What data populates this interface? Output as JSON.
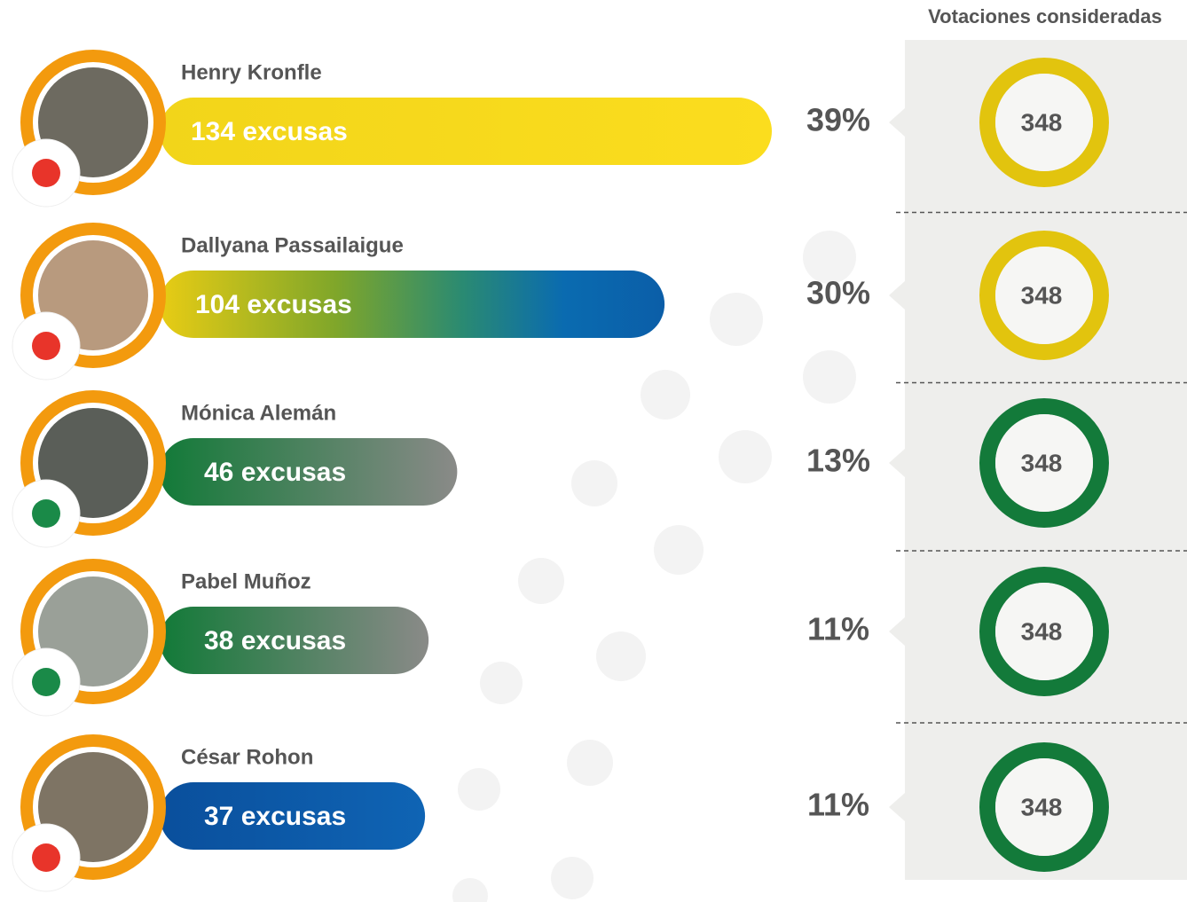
{
  "chart_data": {
    "type": "bar",
    "panel_title": "Votaciones consideradas",
    "categories": [
      "Henry Kronfle",
      "Dallyana Passailaigue",
      "Mónica Alemán",
      "Pabel Muñoz",
      "César Rohon"
    ],
    "values": [
      134,
      104,
      46,
      38,
      37
    ],
    "value_labels": [
      "134 excusas",
      "104 excusas",
      "46 excusas",
      "38 excusas",
      "37 excusas"
    ],
    "shares": [
      39,
      30,
      13,
      11,
      11
    ],
    "share_labels": [
      "39%",
      "30%",
      "13%",
      "11%",
      "11%"
    ],
    "votes": [
      348,
      348,
      348,
      348,
      348
    ],
    "ring_colors": [
      "#e2c40e",
      "#e2c40e",
      "#137a3a",
      "#137a3a",
      "#137a3a"
    ]
  }
}
